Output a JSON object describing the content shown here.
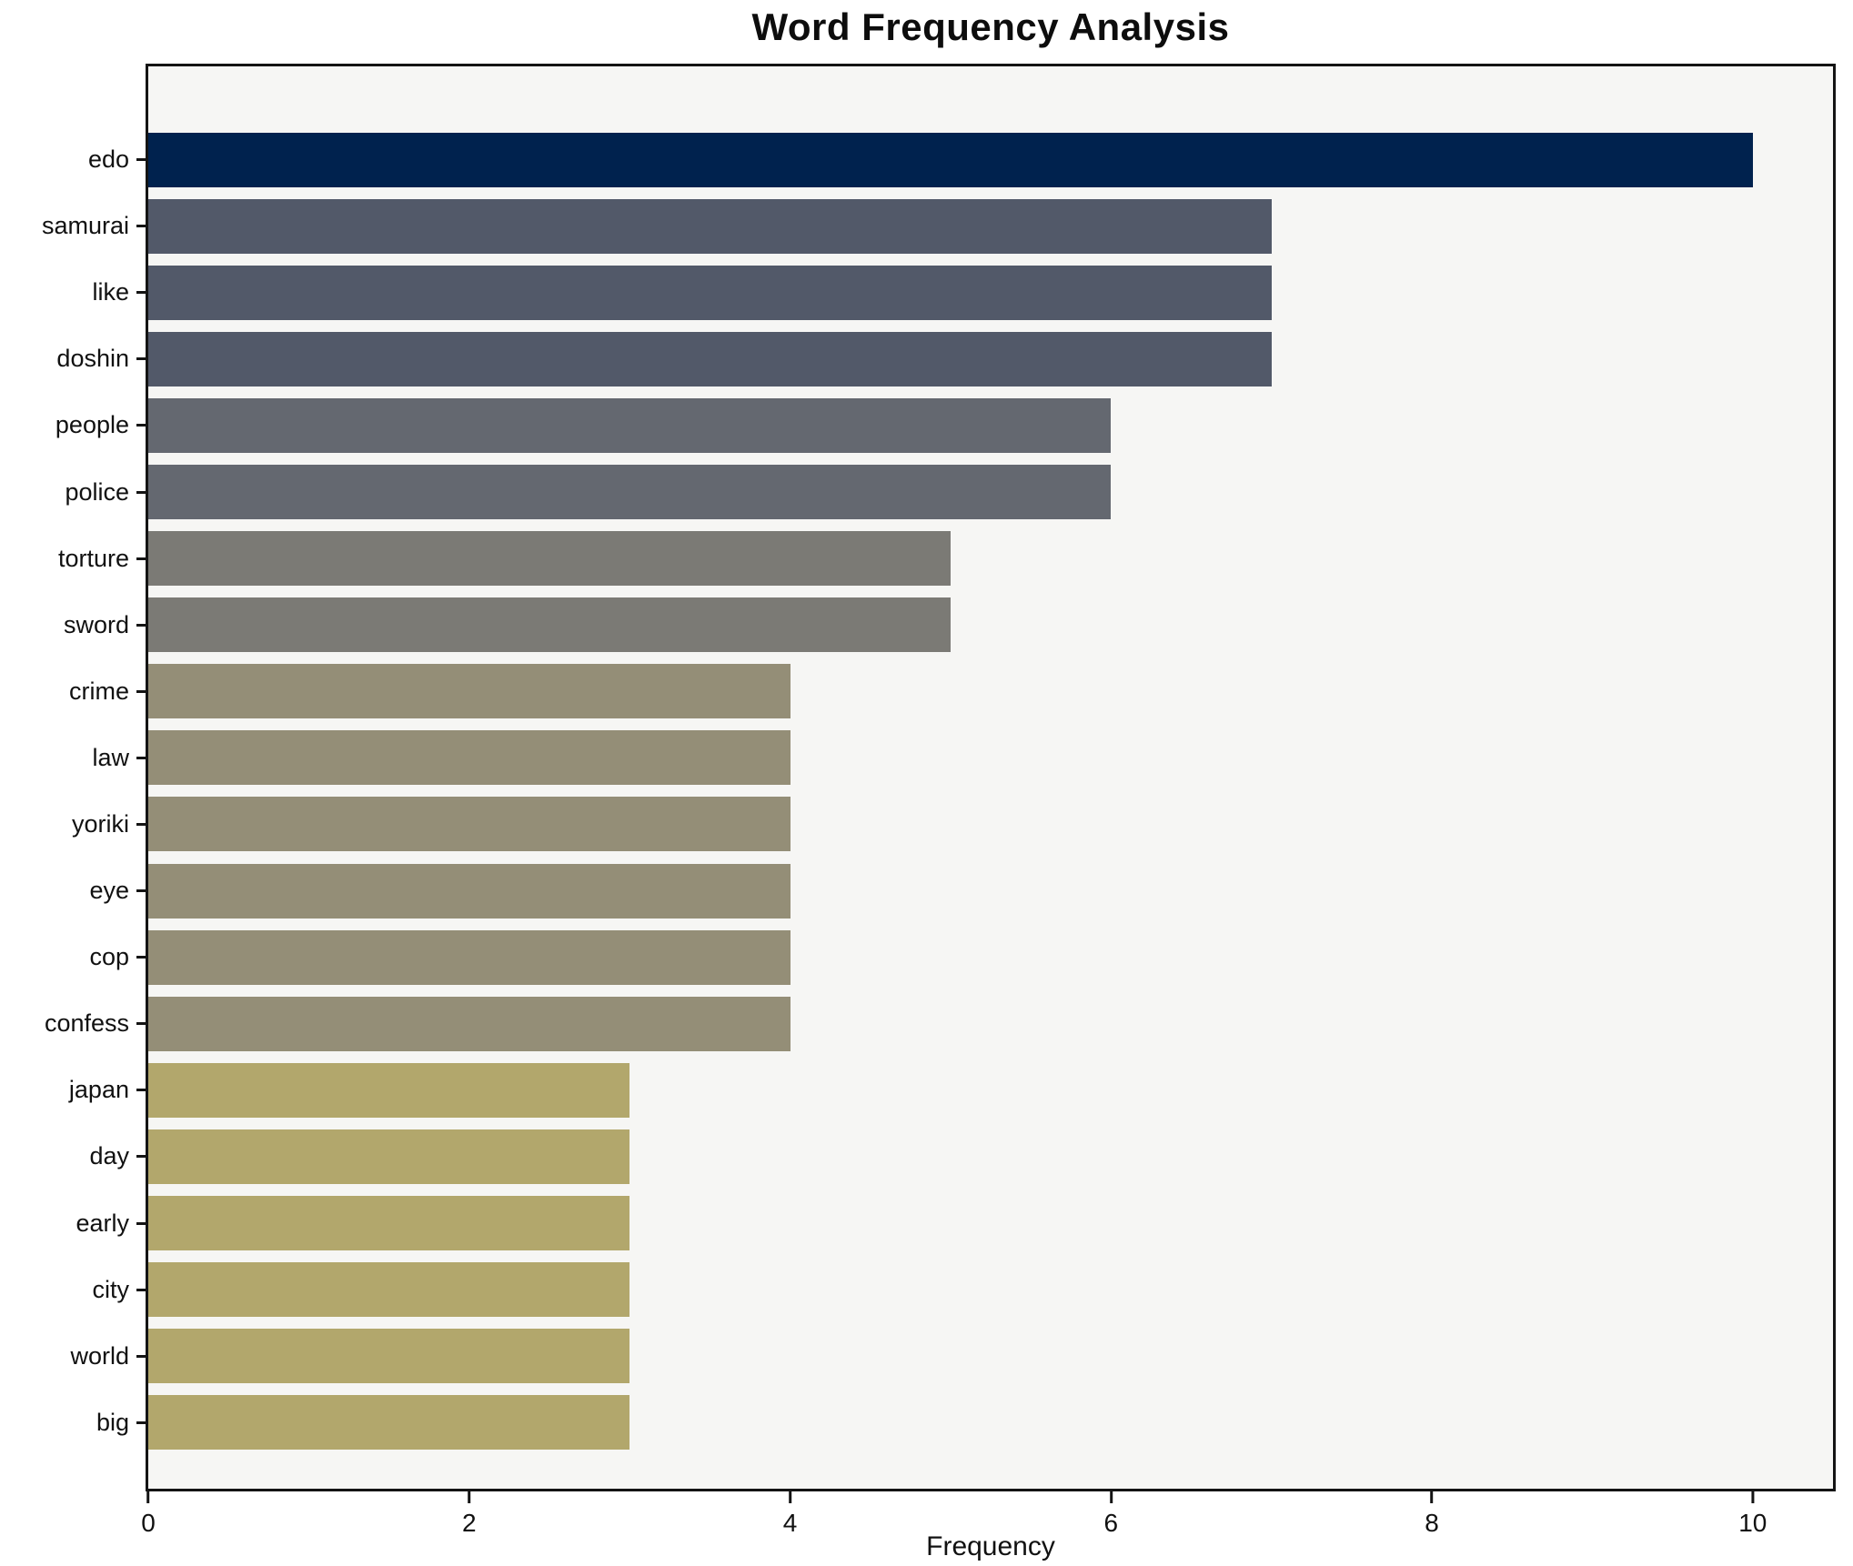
{
  "chart_data": {
    "type": "bar",
    "orientation": "horizontal",
    "title": "Word Frequency Analysis",
    "xlabel": "Frequency",
    "ylabel": "",
    "grid": false,
    "legend": null,
    "plot_background": "#f6f6f4",
    "spine_color": "#141414",
    "xlim": [
      0,
      10.5
    ],
    "xticks": [
      0,
      2,
      4,
      6,
      8,
      10
    ],
    "xtick_labels": [
      "0",
      "2",
      "4",
      "6",
      "8",
      "10"
    ],
    "categories": [
      "edo",
      "samurai",
      "like",
      "doshin",
      "people",
      "police",
      "torture",
      "sword",
      "crime",
      "law",
      "yoriki",
      "eye",
      "cop",
      "confess",
      "japan",
      "day",
      "early",
      "city",
      "world",
      "big"
    ],
    "values": [
      10,
      7,
      7,
      7,
      6,
      6,
      5,
      5,
      4,
      4,
      4,
      4,
      4,
      4,
      3,
      3,
      3,
      3,
      3,
      3
    ],
    "bar_colors": [
      "#00224e",
      "#525969",
      "#525969",
      "#525969",
      "#646870",
      "#646870",
      "#7b7a75",
      "#7b7a75",
      "#948e77",
      "#948e77",
      "#948e77",
      "#948e77",
      "#948e77",
      "#948e77",
      "#b2a76c",
      "#b2a76c",
      "#b2a76c",
      "#b2a76c",
      "#b2a76c",
      "#b2a76c"
    ]
  }
}
